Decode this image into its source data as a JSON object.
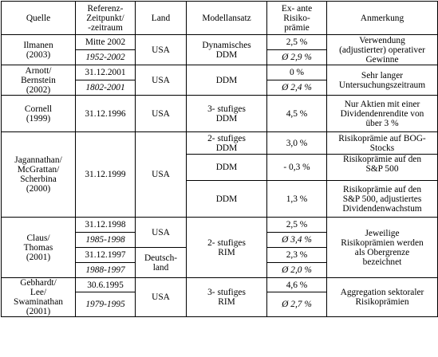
{
  "header": {
    "quelle": "Quelle",
    "referenz_l1": "Referenz-",
    "referenz_l2": "Zeitpunkt/",
    "referenz_l3": "-zeitraum",
    "land": "Land",
    "modell": "Modellansatz",
    "ex_l1": "Ex- ante",
    "ex_l2": "Risiko-",
    "ex_l3": "prämie",
    "anmerkung": "Anmerkung"
  },
  "rows": {
    "ilmanen": {
      "quelle_l1": "Ilmanen",
      "quelle_l2": "(2003)",
      "ref1": "Mitte 2002",
      "ref2": "1952-2002",
      "land": "USA",
      "modell_l1": "Dynamisches",
      "modell_l2": "DDM",
      "val1": "2,5 %",
      "val2": "Ø 2,9 %",
      "anm_l1": "Verwendung",
      "anm_l2": "(adjustierter) operativer",
      "anm_l3": "Gewinne"
    },
    "arnott": {
      "quelle_l1": "Arnott/",
      "quelle_l2": "Bernstein",
      "quelle_l3": "(2002)",
      "ref1": "31.12.2001",
      "ref2": "1802-2001",
      "land": "USA",
      "modell": "DDM",
      "val1": "0 %",
      "val2": "Ø 2,4 %",
      "anm_l1": "Sehr langer",
      "anm_l2": "Untersuchungszeitraum"
    },
    "cornell": {
      "quelle_l1": "Cornell",
      "quelle_l2": "(1999)",
      "ref": "31.12.1996",
      "land": "USA",
      "modell_l1": "3- stufiges",
      "modell_l2": "DDM",
      "val": "4,5 %",
      "anm_l1": "Nur Aktien mit einer",
      "anm_l2": "Dividendenrendite von",
      "anm_l3": "über 3 %"
    },
    "jagannathan": {
      "quelle_l1": "Jagannathan/",
      "quelle_l2": "McGrattan/",
      "quelle_l3": "Scherbina",
      "quelle_l4": "(2000)",
      "ref": "31.12.1999",
      "land": "USA",
      "a": {
        "modell_l1": "2- stufiges",
        "modell_l2": "DDM",
        "val": "3,0 %",
        "anm_l1": "Risikoprämie auf BOG-",
        "anm_l2": "Stocks"
      },
      "b": {
        "modell": "DDM",
        "val": "- 0,3 %",
        "anm_l1": "Risikoprämie auf den",
        "anm_l2": "S&P 500"
      },
      "c": {
        "modell": "DDM",
        "val": "1,3 %",
        "anm_l1": "Risikoprämie auf den",
        "anm_l2": "S&P 500, adjustiertes",
        "anm_l3": "Dividendenwachstum"
      }
    },
    "claus": {
      "quelle_l1": "Claus/",
      "quelle_l2": "Thomas",
      "quelle_l3": "(2001)",
      "ref1": "31.12.1998",
      "ref2": "1985-1998",
      "ref3": "31.12.1997",
      "ref4": "1988-1997",
      "land_usa": "USA",
      "land_de_l1": "Deutsch-",
      "land_de_l2": "land",
      "modell_l1": "2- stufiges",
      "modell_l2": "RIM",
      "val1": "2,5 %",
      "val2": "Ø 3,4 %",
      "val3": "2,3 %",
      "val4": "Ø 2,0 %",
      "anm_l1": "Jeweilige",
      "anm_l2": "Risikoprämien werden",
      "anm_l3": "als Obergrenze",
      "anm_l4": "bezeichnet"
    },
    "gebhardt": {
      "quelle_l1": "Gebhardt/",
      "quelle_l2": "Lee/",
      "quelle_l3": "Swaminathan",
      "quelle_l4": "(2001)",
      "ref1": "30.6.1995",
      "ref2": "1979-1995",
      "land": "USA",
      "modell_l1": "3- stufiges",
      "modell_l2": "RIM",
      "val1": "4,6 %",
      "val2": "Ø 2,7 %",
      "anm_l1": "Aggregation sektoraler",
      "anm_l2": "Risikoprämien"
    }
  }
}
